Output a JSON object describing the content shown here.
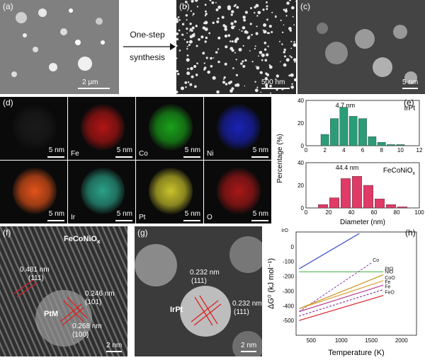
{
  "panels": {
    "a": {
      "label": "(a)",
      "scale": "2 μm"
    },
    "b": {
      "label": "(b)",
      "scale": "500 nm"
    },
    "c": {
      "label": "(c)",
      "scale": "5 nm"
    },
    "d": {
      "label": "(d)",
      "tiles": [
        {
          "name": "",
          "scale": "5 nm",
          "color": "#1a1a1a"
        },
        {
          "name": "Fe",
          "scale": "5 nm",
          "color": "#b01515"
        },
        {
          "name": "Co",
          "scale": "5 nm",
          "color": "#1aa11a"
        },
        {
          "name": "Ni",
          "scale": "5 nm",
          "color": "#1a22b5"
        },
        {
          "name": "",
          "scale": "5 nm",
          "color": "#e3531a"
        },
        {
          "name": "Ir",
          "scale": "5 nm",
          "color": "#2aa188"
        },
        {
          "name": "Pt",
          "scale": "5 nm",
          "color": "#c9c22b"
        },
        {
          "name": "O",
          "scale": "5 nm",
          "color": "#a81818"
        }
      ]
    },
    "f": {
      "label": "(f)",
      "material": "FeCoNiO",
      "material_sub": "x",
      "particle": "PtM",
      "spacings": [
        "0.481 nm",
        "(111)",
        "0.246 nm",
        "(101)",
        "0.268 nm",
        "(100)"
      ],
      "scale": "2 nm"
    },
    "g": {
      "label": "(g)",
      "particle": "IrPt",
      "spacings": [
        "0.232 nm",
        "(111)",
        "0.232 nm",
        "(111)"
      ],
      "scale": "2 nm"
    }
  },
  "arrow": {
    "line1": "One-step",
    "line2": "synthesis"
  },
  "chart_data": [
    {
      "type": "bar",
      "panel": "(e)",
      "title": "IrPt",
      "annotation": "4.7 nm",
      "x": [
        2,
        3,
        4,
        5,
        6,
        7,
        8,
        9,
        10
      ],
      "values": [
        10,
        24,
        34,
        26,
        24,
        8,
        3,
        1,
        1
      ],
      "xlim": [
        0,
        12
      ],
      "ylim": [
        0,
        40
      ],
      "yticks": [
        0,
        20,
        40
      ],
      "xticks": [
        0,
        2,
        4,
        6,
        8,
        10,
        12
      ],
      "color": "#2a9d78"
    },
    {
      "type": "bar",
      "panel": "(e)",
      "title": "FeCoNiO",
      "title_sub": "x",
      "annotation": "44.4 nm",
      "x": [
        15,
        25,
        35,
        45,
        55,
        65,
        75,
        85
      ],
      "values": [
        3,
        9,
        26,
        28,
        20,
        8,
        3,
        1
      ],
      "xlim": [
        0,
        100
      ],
      "ylim": [
        0,
        40
      ],
      "yticks": [
        0,
        20,
        40
      ],
      "xticks": [
        0,
        20,
        40,
        60,
        80,
        100
      ],
      "xlabel": "Diameter (nm)",
      "ylabel": "Percentage (%)",
      "color": "#e03a66"
    },
    {
      "type": "line",
      "panel": "(h)",
      "xlabel": "Temperature (K)",
      "ylabel": "ΔG⁰ (kJ mol⁻¹)",
      "xlim": [
        250,
        2250
      ],
      "ylim": [
        -600,
        100
      ],
      "xticks": [
        500,
        1000,
        1500,
        2000
      ],
      "yticks": [
        0,
        -100,
        -200,
        -300,
        -400,
        -500
      ],
      "series": [
        {
          "name": "IrO2",
          "color": "#3046c8",
          "dash": false,
          "points": [
            [
              300,
              -150
            ],
            [
              1300,
              90
            ]
          ]
        },
        {
          "name": "PtO2 (g)",
          "color": "#4fb84f",
          "dash": false,
          "points": [
            [
              300,
              -170
            ],
            [
              1700,
              -170
            ]
          ]
        },
        {
          "name": "Co3O4",
          "color": "#9b57b8",
          "dash": true,
          "points": [
            [
              300,
              -440
            ],
            [
              1500,
              -110
            ]
          ]
        },
        {
          "name": "NiO",
          "color": "#c8921e",
          "dash": false,
          "points": [
            [
              300,
              -420
            ],
            [
              1700,
              -190
            ]
          ]
        },
        {
          "name": "CoO",
          "color": "#d9a13a",
          "dash": false,
          "points": [
            [
              300,
              -420
            ],
            [
              1700,
              -230
            ]
          ]
        },
        {
          "name": "Fe3O4",
          "color": "#b9418f",
          "dash": false,
          "points": [
            [
              300,
              -440
            ],
            [
              1700,
              -260
            ]
          ]
        },
        {
          "name": "Fe2O3",
          "color": "#8b3aa0",
          "dash": true,
          "points": [
            [
              300,
              -470
            ],
            [
              1700,
              -290
            ]
          ]
        },
        {
          "name": "FeO",
          "color": "#d8202a",
          "dash": false,
          "points": [
            [
              300,
              -500
            ],
            [
              1700,
              -330
            ]
          ]
        }
      ],
      "labels": {
        "IrO2": "IrO",
        "Co3O4": "Co",
        "NiO": "NiO",
        "CoO": "CoO",
        "Fe3O4": "Fe",
        "Fe2O3": "Fe",
        "FeO": "FeO",
        "PtO2": "PtO"
      }
    }
  ],
  "panel_e_label": "(e)",
  "panel_h_label": "(h)"
}
